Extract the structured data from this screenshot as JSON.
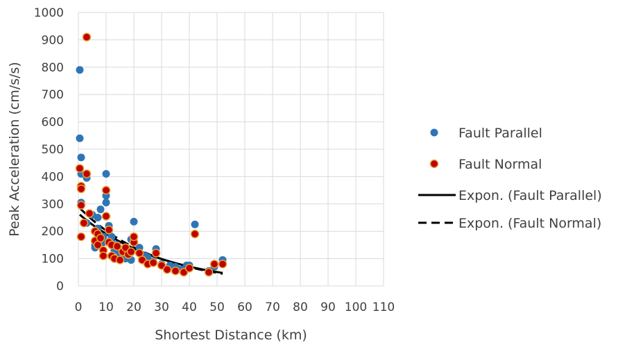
{
  "chart_data": {
    "type": "scatter",
    "xlabel": "Shortest Distance (km)",
    "ylabel": "Peak Acceleration (cm/s/s)",
    "xlim": [
      0,
      110
    ],
    "ylim": [
      0,
      1000
    ],
    "x_ticks": [
      0,
      10,
      20,
      30,
      40,
      50,
      60,
      70,
      80,
      90,
      100,
      110
    ],
    "y_ticks": [
      0,
      100,
      200,
      300,
      400,
      500,
      600,
      700,
      800,
      900,
      1000
    ],
    "grid": true,
    "legend_position": "right",
    "series": [
      {
        "name": "Fault Parallel",
        "color": "#2e75b6",
        "marker": "circle",
        "points": [
          [
            0.5,
            790
          ],
          [
            0.5,
            540
          ],
          [
            1,
            470
          ],
          [
            1,
            410
          ],
          [
            1,
            305
          ],
          [
            1,
            300
          ],
          [
            3,
            395
          ],
          [
            3,
            230
          ],
          [
            5,
            260
          ],
          [
            6,
            140
          ],
          [
            6,
            150
          ],
          [
            7,
            250
          ],
          [
            7,
            210
          ],
          [
            8,
            280
          ],
          [
            9,
            180
          ],
          [
            9,
            160
          ],
          [
            10,
            410
          ],
          [
            10,
            330
          ],
          [
            10,
            305
          ],
          [
            11,
            220
          ],
          [
            11,
            200
          ],
          [
            12,
            180
          ],
          [
            12,
            160
          ],
          [
            13,
            130
          ],
          [
            14,
            150
          ],
          [
            15,
            120
          ],
          [
            16,
            110
          ],
          [
            17,
            100
          ],
          [
            18,
            130
          ],
          [
            19,
            95
          ],
          [
            19,
            170
          ],
          [
            20,
            170
          ],
          [
            20,
            235
          ],
          [
            22,
            140
          ],
          [
            24,
            110
          ],
          [
            25,
            105
          ],
          [
            27,
            90
          ],
          [
            28,
            135
          ],
          [
            30,
            80
          ],
          [
            33,
            75
          ],
          [
            35,
            70
          ],
          [
            37,
            60
          ],
          [
            39,
            75
          ],
          [
            40,
            75
          ],
          [
            42,
            225
          ],
          [
            47,
            55
          ],
          [
            49,
            70
          ],
          [
            52,
            95
          ]
        ]
      },
      {
        "name": "Fault Normal",
        "color": "#c00000",
        "marker": "circle",
        "points": [
          [
            0.5,
            430
          ],
          [
            1,
            365
          ],
          [
            1,
            355
          ],
          [
            1,
            295
          ],
          [
            1,
            180
          ],
          [
            2,
            230
          ],
          [
            3,
            910
          ],
          [
            3,
            410
          ],
          [
            4,
            265
          ],
          [
            6,
            200
          ],
          [
            6,
            165
          ],
          [
            7,
            150
          ],
          [
            7,
            190
          ],
          [
            8,
            175
          ],
          [
            9,
            130
          ],
          [
            9,
            110
          ],
          [
            10,
            350
          ],
          [
            10,
            255
          ],
          [
            11,
            205
          ],
          [
            11,
            160
          ],
          [
            12,
            150
          ],
          [
            12,
            110
          ],
          [
            13,
            100
          ],
          [
            14,
            145
          ],
          [
            15,
            95
          ],
          [
            16,
            125
          ],
          [
            17,
            140
          ],
          [
            18,
            115
          ],
          [
            19,
            125
          ],
          [
            20,
            160
          ],
          [
            20,
            180
          ],
          [
            22,
            120
          ],
          [
            23,
            95
          ],
          [
            25,
            80
          ],
          [
            27,
            85
          ],
          [
            28,
            120
          ],
          [
            30,
            75
          ],
          [
            32,
            60
          ],
          [
            35,
            55
          ],
          [
            38,
            50
          ],
          [
            40,
            65
          ],
          [
            42,
            190
          ],
          [
            47,
            50
          ],
          [
            49,
            80
          ],
          [
            52,
            80
          ]
        ]
      }
    ],
    "trendlines": [
      {
        "name": "Expon. (Fault Parallel)",
        "type": "exponential",
        "a": 265,
        "b": -0.033,
        "x_range": [
          0.5,
          52
        ],
        "style": "solid",
        "color": "#000000"
      },
      {
        "name": "Expon. (Fault Normal)",
        "type": "exponential",
        "a": 290,
        "b": -0.036,
        "x_range": [
          0.5,
          52
        ],
        "style": "dashed",
        "color": "#000000"
      }
    ]
  }
}
